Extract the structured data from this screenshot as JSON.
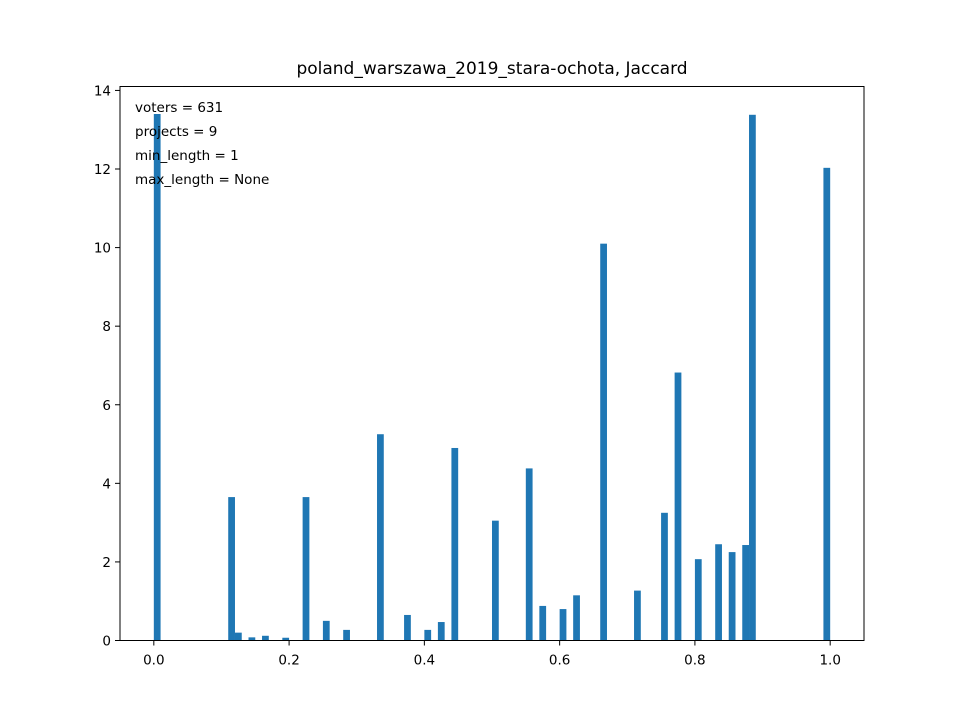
{
  "chart_data": {
    "type": "bar",
    "title": "poland_warszawa_2019_stara-ochota, Jaccard",
    "xlabel": "",
    "ylabel": "",
    "xlim": [
      -0.05,
      1.05
    ],
    "ylim": [
      0,
      14.1
    ],
    "x_ticks": [
      0.0,
      0.2,
      0.4,
      0.6,
      0.8,
      1.0
    ],
    "x_tick_labels": [
      "0.0",
      "0.2",
      "0.4",
      "0.6",
      "0.8",
      "1.0"
    ],
    "y_ticks": [
      0,
      2,
      4,
      6,
      8,
      10,
      12,
      14
    ],
    "y_tick_labels": [
      "0",
      "2",
      "4",
      "6",
      "8",
      "10",
      "12",
      "14"
    ],
    "bar_width": 0.01,
    "bar_color": "#1f77b4",
    "annotations": [
      "voters = 631",
      "projects = 9",
      "min_length = 1",
      "max_length = None"
    ],
    "x": [
      0.005,
      0.115,
      0.125,
      0.145,
      0.165,
      0.195,
      0.225,
      0.255,
      0.285,
      0.335,
      0.375,
      0.405,
      0.425,
      0.445,
      0.505,
      0.555,
      0.575,
      0.605,
      0.625,
      0.665,
      0.715,
      0.755,
      0.775,
      0.805,
      0.835,
      0.855,
      0.875,
      0.885,
      0.995
    ],
    "values": [
      13.4,
      3.65,
      0.2,
      0.08,
      0.12,
      0.07,
      3.65,
      0.5,
      0.27,
      5.25,
      0.65,
      0.27,
      0.47,
      4.9,
      3.05,
      4.38,
      0.88,
      0.8,
      1.15,
      10.1,
      1.27,
      3.25,
      6.82,
      2.07,
      2.45,
      2.25,
      2.43,
      13.38,
      12.03
    ]
  }
}
